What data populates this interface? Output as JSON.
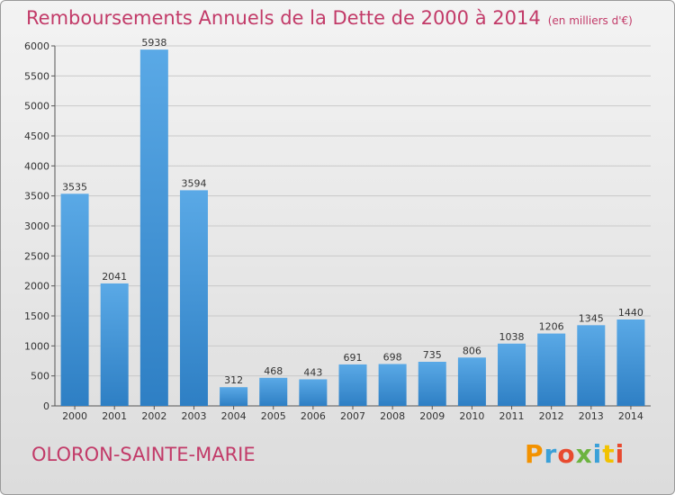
{
  "header": {
    "title": "Remboursements Annuels de la Dette de 2000 à 2014",
    "subtitle": "(en milliers d'€)"
  },
  "footer": {
    "city": "OLORON-SAINTE-MARIE",
    "logo_text": "Proxiti"
  },
  "colors": {
    "title": "#c23a68",
    "bar_light": "#5aa9e6",
    "bar_dark": "#2e7fc4",
    "logo": [
      "#f39200",
      "#3aa0d8",
      "#e84a2f",
      "#6cb33f",
      "#3aa0d8",
      "#f2c200",
      "#e84a2f"
    ]
  },
  "chart_data": {
    "type": "bar",
    "title": "Remboursements Annuels de la Dette de 2000 à 2014",
    "subtitle": "(en milliers d'€)",
    "categories": [
      "2000",
      "2001",
      "2002",
      "2003",
      "2004",
      "2005",
      "2006",
      "2007",
      "2008",
      "2009",
      "2010",
      "2011",
      "2012",
      "2013",
      "2014"
    ],
    "values": [
      3535,
      2041,
      5938,
      3594,
      312,
      468,
      443,
      691,
      698,
      735,
      806,
      1038,
      1206,
      1345,
      1440
    ],
    "ylim": [
      0,
      6000
    ],
    "yticks": [
      0,
      500,
      1000,
      1500,
      2000,
      2500,
      3000,
      3500,
      4000,
      4500,
      5000,
      5500,
      6000
    ],
    "grid": true,
    "legend": "none"
  }
}
